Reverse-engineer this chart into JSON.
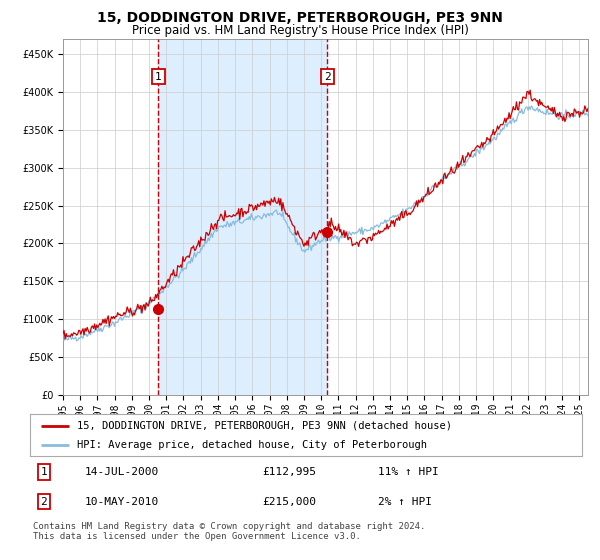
{
  "title": "15, DODDINGTON DRIVE, PETERBOROUGH, PE3 9NN",
  "subtitle": "Price paid vs. HM Land Registry's House Price Index (HPI)",
  "title_fontsize": 10,
  "subtitle_fontsize": 8.5,
  "ylim": [
    0,
    470000
  ],
  "yticks": [
    0,
    50000,
    100000,
    150000,
    200000,
    250000,
    300000,
    350000,
    400000,
    450000
  ],
  "ytick_labels": [
    "£0",
    "£50K",
    "£100K",
    "£150K",
    "£200K",
    "£250K",
    "£300K",
    "£350K",
    "£400K",
    "£450K"
  ],
  "sale1_date": 2000.54,
  "sale1_price": 112995,
  "sale2_date": 2010.36,
  "sale2_price": 215000,
  "shade_color": "#ddeeff",
  "hpi_line_color": "#88bbdd",
  "price_line_color": "#cc0000",
  "dot_color": "#cc0000",
  "plot_bg_color": "#ffffff",
  "fig_bg_color": "#ffffff",
  "legend1_label": "15, DODDINGTON DRIVE, PETERBOROUGH, PE3 9NN (detached house)",
  "legend2_label": "HPI: Average price, detached house, City of Peterborough",
  "table_row1": [
    "1",
    "14-JUL-2000",
    "£112,995",
    "11% ↑ HPI"
  ],
  "table_row2": [
    "2",
    "10-MAY-2010",
    "£215,000",
    "2% ↑ HPI"
  ],
  "footer": "Contains HM Land Registry data © Crown copyright and database right 2024.\nThis data is licensed under the Open Government Licence v3.0.",
  "xstart": 1995.0,
  "xend": 2025.5,
  "grid_color": "#cccccc",
  "tick_fontsize": 7,
  "legend_fontsize": 7.5,
  "table_fontsize": 8,
  "footer_fontsize": 6.5
}
